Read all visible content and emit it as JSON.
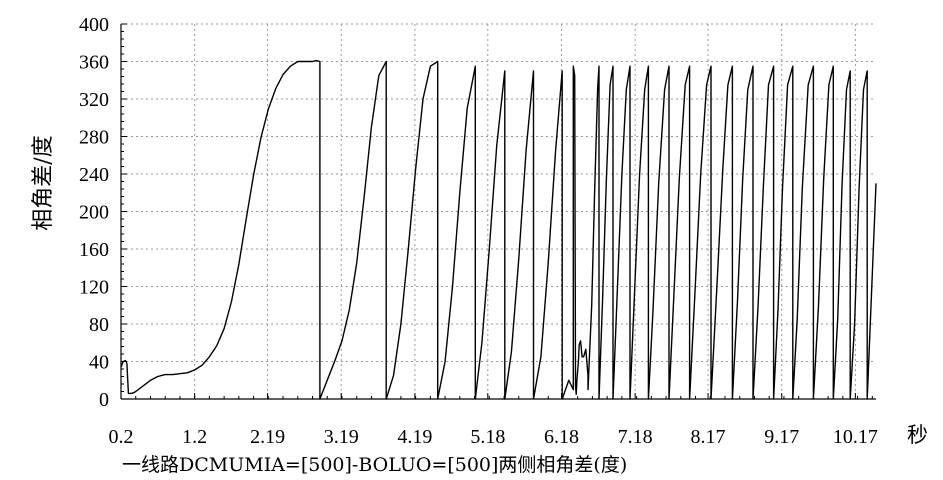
{
  "chart_data": {
    "type": "line",
    "title": "",
    "ylabel": "相角差/度",
    "xunit": "秒",
    "caption": "一线路DCMUMIA=[500]-BOLUO=[500]两侧相角差(度)",
    "xlim": [
      0.2,
      10.45
    ],
    "ylim": [
      0,
      400
    ],
    "yticks": [
      0,
      40,
      80,
      120,
      160,
      200,
      240,
      280,
      320,
      360,
      400
    ],
    "xticks": [
      0.2,
      1.2,
      2.19,
      3.19,
      4.19,
      5.18,
      6.18,
      7.18,
      8.17,
      9.17,
      10.17
    ],
    "xtick_labels": [
      "0.2",
      "1.2",
      "2.19",
      "3.19",
      "4.19",
      "5.18",
      "6.18",
      "7.18",
      "8.17",
      "9.17",
      "10.17"
    ],
    "grid": true,
    "line_color": "#000000",
    "series": [
      {
        "x": [
          0.2,
          0.23,
          0.26,
          0.28,
          0.3,
          0.34,
          0.38,
          0.4,
          0.5,
          0.6,
          0.7,
          0.8,
          0.9,
          1.0,
          1.1,
          1.2,
          1.3,
          1.4,
          1.5,
          1.6,
          1.7,
          1.8,
          1.9,
          2.0,
          2.1,
          2.2,
          2.3,
          2.4,
          2.5,
          2.6,
          2.7,
          2.8,
          2.85,
          2.9,
          2.9,
          3.0,
          3.1,
          3.2,
          3.3,
          3.4,
          3.5,
          3.6,
          3.7,
          3.8,
          3.8,
          3.9,
          4.0,
          4.1,
          4.2,
          4.3,
          4.4,
          4.5,
          4.5,
          4.6,
          4.7,
          4.8,
          4.9,
          5.01,
          5.01,
          5.1,
          5.2,
          5.3,
          5.41,
          5.41,
          5.5,
          5.6,
          5.7,
          5.8,
          5.8,
          5.9,
          6.0,
          6.1,
          6.19,
          6.19,
          6.28,
          6.34,
          6.34,
          6.36,
          6.37,
          6.38,
          6.39,
          6.41,
          6.42,
          6.44,
          6.46,
          6.48,
          6.51,
          6.54,
          6.54,
          6.59,
          6.63,
          6.67,
          6.69,
          6.69,
          6.74,
          6.79,
          6.84,
          6.88,
          6.88,
          6.94,
          7.0,
          7.06,
          7.11,
          7.11,
          7.17,
          7.24,
          7.31,
          7.36,
          7.36,
          7.42,
          7.5,
          7.58,
          7.64,
          7.64,
          7.7,
          7.78,
          7.86,
          7.92,
          7.92,
          7.99,
          8.07,
          8.15,
          8.21,
          8.21,
          8.29,
          8.37,
          8.44,
          8.5,
          8.5,
          8.57,
          8.64,
          8.71,
          8.78,
          8.78,
          8.85,
          8.92,
          8.99,
          9.06,
          9.06,
          9.12,
          9.18,
          9.25,
          9.32,
          9.32,
          9.38,
          9.45,
          9.53,
          9.6,
          9.6,
          9.67,
          9.74,
          9.81,
          9.87,
          9.87,
          9.93,
          9.99,
          10.05,
          10.1,
          10.1,
          10.16,
          10.22,
          10.28,
          10.33,
          10.33,
          10.45
        ],
        "y": [
          34,
          40,
          41,
          38,
          6,
          6,
          7,
          8,
          14,
          20,
          24,
          26,
          26,
          27,
          28,
          31,
          36,
          45,
          57,
          75,
          104,
          144,
          192,
          239,
          279,
          309,
          331,
          346,
          355,
          360,
          360,
          360,
          361,
          360,
          0,
          20,
          40,
          62,
          95,
          145,
          215,
          290,
          345,
          360,
          0,
          25,
          80,
          160,
          245,
          320,
          355,
          360,
          0,
          40,
          120,
          220,
          310,
          355,
          0,
          60,
          160,
          270,
          350,
          0,
          50,
          150,
          265,
          350,
          0,
          45,
          145,
          265,
          350,
          0,
          20,
          10,
          355,
          345,
          15,
          5,
          20,
          40,
          58,
          62,
          45,
          45,
          53,
          25,
          10,
          100,
          220,
          330,
          355,
          0,
          110,
          235,
          335,
          355,
          0,
          120,
          240,
          330,
          355,
          0,
          110,
          240,
          330,
          355,
          0,
          90,
          230,
          330,
          355,
          0,
          100,
          235,
          335,
          355,
          0,
          110,
          240,
          335,
          355,
          0,
          120,
          245,
          335,
          355,
          0,
          105,
          235,
          330,
          355,
          0,
          100,
          225,
          335,
          355,
          0,
          95,
          225,
          335,
          355,
          0,
          85,
          225,
          335,
          355,
          0,
          100,
          235,
          335,
          355,
          0,
          85,
          230,
          330,
          350,
          0,
          80,
          225,
          330,
          350,
          0,
          230
        ]
      }
    ]
  }
}
